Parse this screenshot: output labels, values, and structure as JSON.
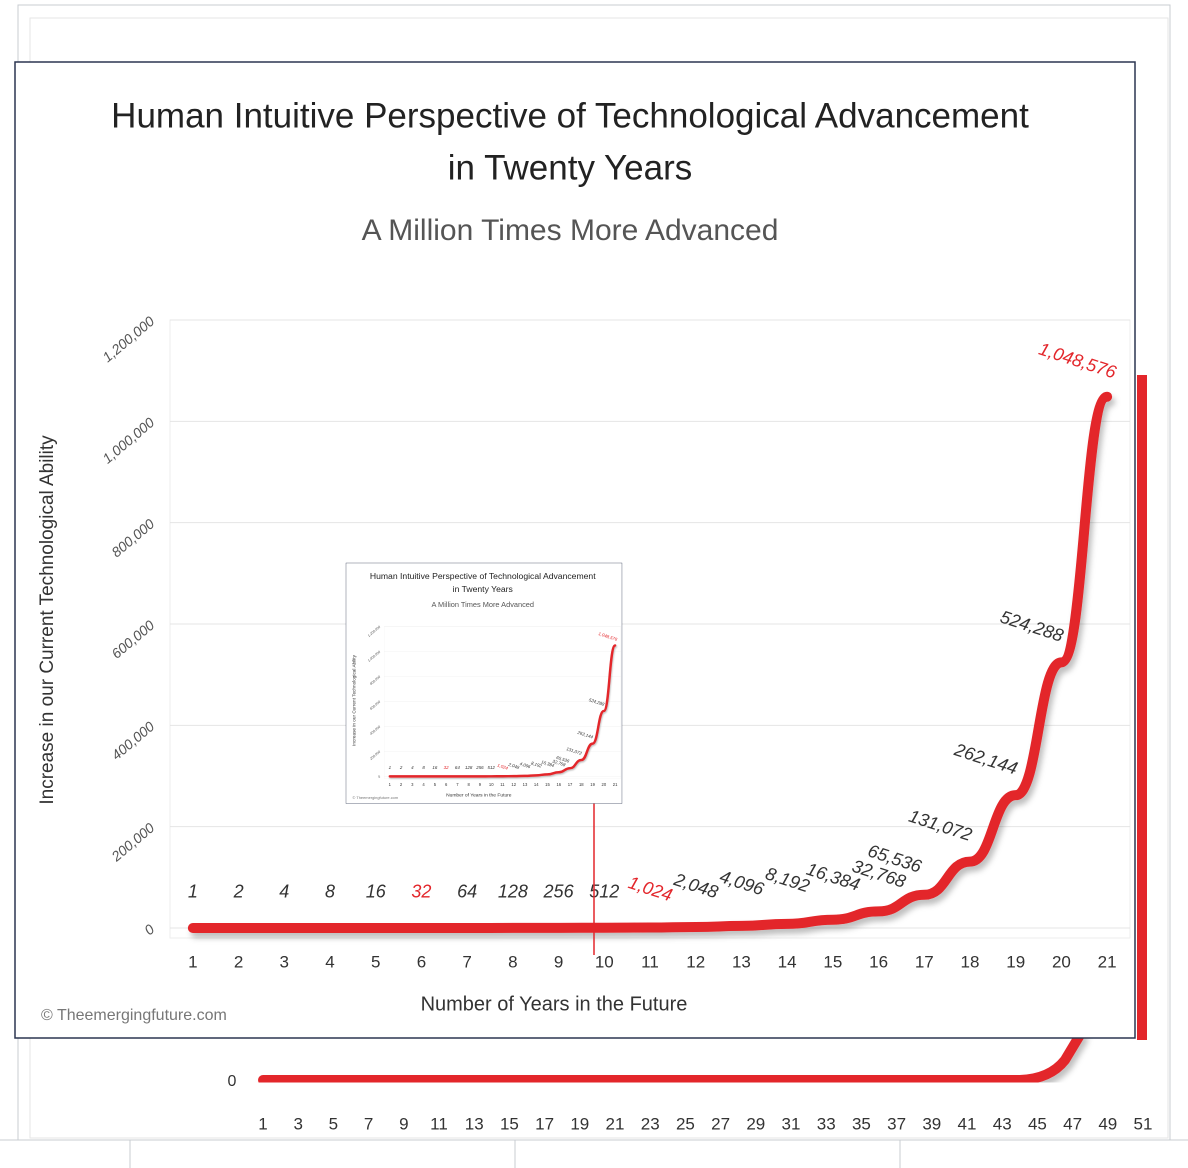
{
  "chart_data": [
    {
      "type": "line",
      "title": "Human Intuitive Perspective of Technological Advancement",
      "title_line2": "in Twenty Years",
      "subtitle": "A Million Times More Advanced",
      "x_label": "Number of Years in the Future",
      "y_label": "Increase in our Current Technological Ability",
      "credit": "© Theemergingfuture.com",
      "x": [
        1,
        2,
        3,
        4,
        5,
        6,
        7,
        8,
        9,
        10,
        11,
        12,
        13,
        14,
        15,
        16,
        17,
        18,
        19,
        20,
        21
      ],
      "values": [
        1,
        2,
        4,
        8,
        16,
        32,
        64,
        128,
        256,
        512,
        1024,
        2048,
        4096,
        8192,
        16384,
        32768,
        65536,
        131072,
        262144,
        524288,
        1048576
      ],
      "value_labels": [
        "1",
        "2",
        "4",
        "8",
        "16",
        "32",
        "64",
        "128",
        "256",
        "512",
        "1,024",
        "2,048",
        "4,096",
        "8,192",
        "16,384",
        "32,768",
        "65,536",
        "131,072",
        "262,144",
        "524,288",
        "1,048,576"
      ],
      "label_colors": [
        "#333",
        "#333",
        "#333",
        "#333",
        "#333",
        "#e3262b",
        "#333",
        "#333",
        "#333",
        "#333",
        "#e3262b",
        "#333",
        "#333",
        "#333",
        "#333",
        "#333",
        "#333",
        "#333",
        "#333",
        "#333",
        "#e3262b"
      ],
      "color": "#e3262b",
      "xlim": [
        0.5,
        21.5
      ],
      "xticks": [
        1,
        2,
        3,
        4,
        5,
        6,
        7,
        8,
        9,
        10,
        11,
        12,
        13,
        14,
        15,
        16,
        17,
        18,
        19,
        20,
        21
      ],
      "ylim": [
        0,
        1200000
      ],
      "yticks": [
        0,
        {
          "value": 200000,
          "label": "200,000"
        },
        {
          "value": 400000,
          "label": "400,000"
        },
        {
          "value": 600000,
          "label": "600,000"
        },
        {
          "value": 800000,
          "label": "800,000"
        },
        {
          "value": 1000000,
          "label": "1,000,000"
        },
        {
          "value": 1200000,
          "label": "1,200,000"
        }
      ],
      "grid": true
    },
    {
      "type": "line",
      "xticks": [
        1,
        3,
        5,
        7,
        9,
        11,
        13,
        15,
        17,
        19,
        21,
        23,
        25,
        27,
        29,
        31,
        33,
        35,
        37,
        39,
        41,
        43,
        45,
        47,
        49,
        51
      ],
      "yticks": [
        0
      ]
    }
  ]
}
